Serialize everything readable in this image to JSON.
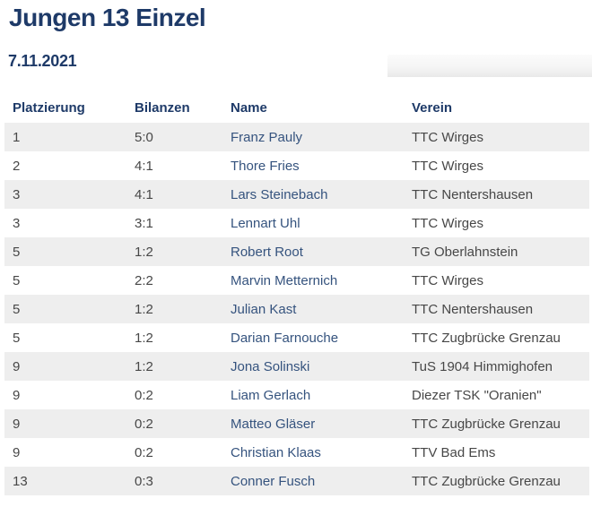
{
  "page": {
    "title": "Jungen 13 Einzel",
    "date": "7.11.2021"
  },
  "colors": {
    "heading": "#1e3a68",
    "name_link": "#35537e",
    "body_text": "#474747",
    "row_alt_bg": "#eeeeee"
  },
  "table": {
    "columns": [
      {
        "key": "platzierung",
        "label": "Platzierung"
      },
      {
        "key": "bilanzen",
        "label": "Bilanzen"
      },
      {
        "key": "name",
        "label": "Name"
      },
      {
        "key": "verein",
        "label": "Verein"
      }
    ],
    "rows": [
      {
        "platzierung": "1",
        "bilanzen": "5:0",
        "name": "Franz Pauly",
        "verein": "TTC Wirges"
      },
      {
        "platzierung": "2",
        "bilanzen": "4:1",
        "name": "Thore Fries",
        "verein": "TTC Wirges"
      },
      {
        "platzierung": "3",
        "bilanzen": "4:1",
        "name": "Lars Steinebach",
        "verein": "TTC Nentershausen"
      },
      {
        "platzierung": "3",
        "bilanzen": "3:1",
        "name": "Lennart Uhl",
        "verein": "TTC Wirges"
      },
      {
        "platzierung": "5",
        "bilanzen": "1:2",
        "name": "Robert Root",
        "verein": "TG Oberlahnstein"
      },
      {
        "platzierung": "5",
        "bilanzen": "2:2",
        "name": "Marvin Metternich",
        "verein": "TTC Wirges"
      },
      {
        "platzierung": "5",
        "bilanzen": "1:2",
        "name": "Julian Kast",
        "verein": "TTC Nentershausen"
      },
      {
        "platzierung": "5",
        "bilanzen": "1:2",
        "name": "Darian Farnouche",
        "verein": "TTC Zugbrücke Grenzau"
      },
      {
        "platzierung": "9",
        "bilanzen": "1:2",
        "name": "Jona Solinski",
        "verein": "TuS 1904 Himmighofen"
      },
      {
        "platzierung": "9",
        "bilanzen": "0:2",
        "name": "Liam Gerlach",
        "verein": "Diezer TSK \"Oranien\""
      },
      {
        "platzierung": "9",
        "bilanzen": "0:2",
        "name": "Matteo Gläser",
        "verein": "TTC Zugbrücke Grenzau"
      },
      {
        "platzierung": "9",
        "bilanzen": "0:2",
        "name": "Christian Klaas",
        "verein": "TTV Bad Ems"
      },
      {
        "platzierung": "13",
        "bilanzen": "0:3",
        "name": "Conner Fusch",
        "verein": "TTC Zugbrücke Grenzau"
      }
    ]
  }
}
